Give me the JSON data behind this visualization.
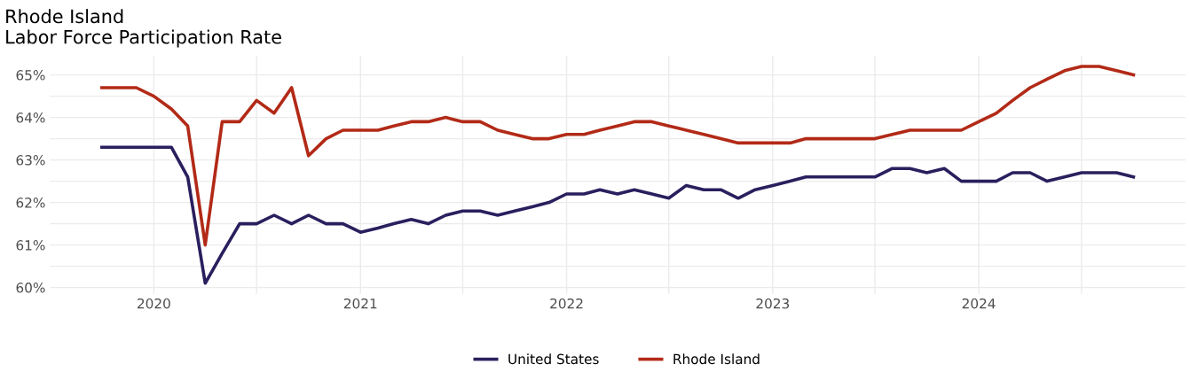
{
  "chart_data": {
    "type": "line",
    "title": "Rhode Island\nLabor Force Participation Rate",
    "x": [
      "2019-10",
      "2019-11",
      "2019-12",
      "2020-01",
      "2020-02",
      "2020-03",
      "2020-04",
      "2020-05",
      "2020-06",
      "2020-07",
      "2020-08",
      "2020-09",
      "2020-10",
      "2020-11",
      "2020-12",
      "2021-01",
      "2021-02",
      "2021-03",
      "2021-04",
      "2021-05",
      "2021-06",
      "2021-07",
      "2021-08",
      "2021-09",
      "2021-10",
      "2021-11",
      "2021-12",
      "2022-01",
      "2022-02",
      "2022-03",
      "2022-04",
      "2022-05",
      "2022-06",
      "2022-07",
      "2022-08",
      "2022-09",
      "2022-10",
      "2022-11",
      "2022-12",
      "2023-01",
      "2023-02",
      "2023-03",
      "2023-04",
      "2023-05",
      "2023-06",
      "2023-07",
      "2023-08",
      "2023-09",
      "2023-10",
      "2023-11",
      "2023-12",
      "2024-01",
      "2024-02",
      "2024-03",
      "2024-04",
      "2024-05",
      "2024-06",
      "2024-07",
      "2024-08",
      "2024-09",
      "2024-10"
    ],
    "series": [
      {
        "name": "United States",
        "color": "#2a1f5e",
        "values": [
          63.3,
          63.3,
          63.3,
          63.3,
          63.3,
          62.6,
          60.1,
          60.8,
          61.5,
          61.5,
          61.7,
          61.5,
          61.7,
          61.5,
          61.5,
          61.3,
          61.4,
          61.5,
          61.6,
          61.5,
          61.7,
          61.8,
          61.8,
          61.7,
          61.8,
          61.9,
          62.0,
          62.2,
          62.2,
          62.3,
          62.2,
          62.3,
          62.2,
          62.1,
          62.4,
          62.3,
          62.3,
          62.1,
          62.3,
          62.4,
          62.5,
          62.6,
          62.6,
          62.6,
          62.6,
          62.6,
          62.8,
          62.8,
          62.7,
          62.8,
          62.5,
          62.5,
          62.5,
          62.7,
          62.7,
          62.5,
          62.6,
          62.7,
          62.7,
          62.7,
          62.6
        ]
      },
      {
        "name": "Rhode Island",
        "color": "#b22a17",
        "values": [
          64.7,
          64.7,
          64.7,
          64.5,
          64.2,
          63.8,
          61.0,
          63.9,
          63.9,
          64.4,
          64.1,
          64.7,
          63.1,
          63.5,
          63.7,
          63.7,
          63.7,
          63.8,
          63.9,
          63.9,
          64.0,
          63.9,
          63.9,
          63.7,
          63.6,
          63.5,
          63.5,
          63.6,
          63.6,
          63.7,
          63.8,
          63.9,
          63.9,
          63.8,
          63.7,
          63.6,
          63.5,
          63.4,
          63.4,
          63.4,
          63.4,
          63.5,
          63.5,
          63.5,
          63.5,
          63.5,
          63.6,
          63.7,
          63.7,
          63.7,
          63.7,
          63.9,
          64.1,
          64.4,
          64.7,
          64.9,
          65.1,
          65.2,
          65.2,
          65.1,
          65.0
        ]
      }
    ],
    "xlim": [
      "2019-07-01",
      "2025-01-01"
    ],
    "xticks": [
      {
        "value": "2020-01-01",
        "label": "2020"
      },
      {
        "value": "2020-07-01",
        "label": null
      },
      {
        "value": "2021-01-01",
        "label": "2021"
      },
      {
        "value": "2021-07-01",
        "label": null
      },
      {
        "value": "2022-01-01",
        "label": "2022"
      },
      {
        "value": "2022-07-01",
        "label": null
      },
      {
        "value": "2023-01-01",
        "label": "2023"
      },
      {
        "value": "2023-07-01",
        "label": null
      },
      {
        "value": "2024-01-01",
        "label": "2024"
      },
      {
        "value": "2024-07-01",
        "label": null
      }
    ],
    "ylim": [
      59.85,
      65.45
    ],
    "yticks": [
      {
        "value": 60,
        "label": "60%"
      },
      {
        "value": 60.5,
        "label": null
      },
      {
        "value": 61,
        "label": "61%"
      },
      {
        "value": 61.5,
        "label": null
      },
      {
        "value": 62,
        "label": "62%"
      },
      {
        "value": 62.5,
        "label": null
      },
      {
        "value": 63,
        "label": "63%"
      },
      {
        "value": 63.5,
        "label": null
      },
      {
        "value": 64,
        "label": "64%"
      },
      {
        "value": 64.5,
        "label": null
      },
      {
        "value": 65,
        "label": "65%"
      }
    ],
    "grid": true,
    "legend": "bottom",
    "marker": "none",
    "line_style": "solid"
  }
}
